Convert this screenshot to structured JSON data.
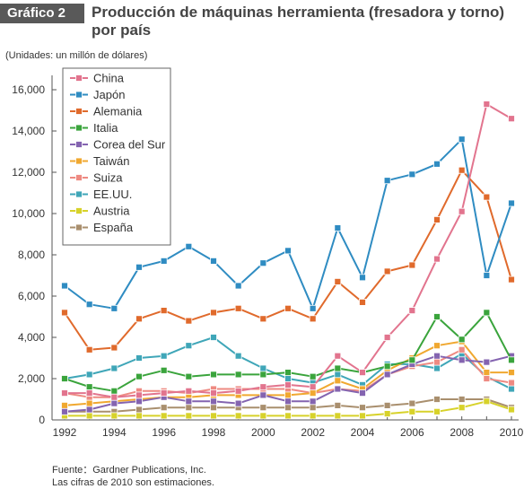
{
  "header": {
    "badge": "Gráfico 2",
    "title_line1": "Producción de máquinas herramienta (fresadora y torno)",
    "title_line2": "por país"
  },
  "units_label": "(Unidades: un millón de dólares)",
  "footer": {
    "source": "Fuente：Gardner Publications, Inc.",
    "note": "Las cifras de 2010 son estimaciones."
  },
  "chart_data": {
    "type": "line",
    "title": "Producción de máquinas herramienta (fresadora y torno) por país",
    "ylabel": "(Unidades: un millón de dólares)",
    "ylim": [
      0,
      16000
    ],
    "yticks": [
      0,
      2000,
      4000,
      6000,
      8000,
      10000,
      12000,
      14000,
      16000
    ],
    "ytick_labels": [
      "0",
      "2,000",
      "4,000",
      "6,000",
      "8,000",
      "10,000",
      "12,000",
      "14,000",
      "16,000"
    ],
    "x": [
      1992,
      1993,
      1994,
      1995,
      1996,
      1997,
      1998,
      1999,
      2000,
      2001,
      2002,
      2003,
      2004,
      2005,
      2006,
      2007,
      2008,
      2009,
      2010
    ],
    "xtick_labels": [
      "1992",
      "1994",
      "1996",
      "1998",
      "2000",
      "2002",
      "2004",
      "2006",
      "2008",
      "2010"
    ],
    "grid": false,
    "legend_position": "top-left",
    "series": [
      {
        "name": "China",
        "color": "#e2748e",
        "values": [
          1300,
          1300,
          1100,
          1200,
          1300,
          1400,
          1300,
          1400,
          1600,
          1700,
          1600,
          3100,
          2300,
          4000,
          5300,
          7800,
          10100,
          15300,
          14600
        ]
      },
      {
        "name": "Japón",
        "color": "#2f8cc2",
        "values": [
          6500,
          5600,
          5400,
          7400,
          7700,
          8400,
          7700,
          6500,
          7600,
          8200,
          5400,
          9300,
          6900,
          11600,
          11900,
          12400,
          13600,
          7000,
          10500
        ]
      },
      {
        "name": "Alemania",
        "color": "#e06a2c",
        "values": [
          5200,
          3400,
          3500,
          4900,
          5300,
          4800,
          5200,
          5400,
          4900,
          5400,
          4900,
          6700,
          5700,
          7200,
          7500,
          9700,
          12100,
          10800,
          6800
        ]
      },
      {
        "name": "Italia",
        "color": "#3aa43c",
        "values": [
          2000,
          1600,
          1400,
          2100,
          2400,
          2100,
          2200,
          2200,
          2200,
          2300,
          2100,
          2500,
          2300,
          2600,
          2900,
          5000,
          3900,
          5200,
          2900
        ]
      },
      {
        "name": "Corea del Sur",
        "color": "#8464b0",
        "values": [
          400,
          500,
          800,
          900,
          1100,
          900,
          900,
          800,
          1200,
          900,
          900,
          1500,
          1300,
          2200,
          2700,
          3100,
          2900,
          2800,
          3100
        ]
      },
      {
        "name": "Taiwán",
        "color": "#f0a830",
        "values": [
          700,
          800,
          900,
          1000,
          1100,
          1100,
          1200,
          1200,
          1200,
          1200,
          1300,
          1900,
          1500,
          2400,
          3000,
          3600,
          3800,
          2300,
          2300
        ]
      },
      {
        "name": "Suiza",
        "color": "#ee8a82",
        "values": [
          1300,
          1100,
          1100,
          1400,
          1400,
          1300,
          1500,
          1500,
          1500,
          1500,
          1300,
          1500,
          1400,
          2200,
          2600,
          2800,
          3400,
          2000,
          1800
        ]
      },
      {
        "name": "EE.UU.",
        "color": "#3fa6b8",
        "values": [
          2000,
          2200,
          2500,
          3000,
          3100,
          3600,
          4000,
          3100,
          2500,
          2000,
          1800,
          2200,
          1700,
          2700,
          2700,
          2500,
          3200,
          2100,
          1500
        ]
      },
      {
        "name": "Austria",
        "color": "#d7d22a",
        "values": [
          200,
          200,
          200,
          200,
          200,
          200,
          200,
          200,
          200,
          200,
          200,
          200,
          200,
          300,
          400,
          400,
          600,
          900,
          500
        ]
      },
      {
        "name": "España",
        "color": "#a98f6e",
        "values": [
          400,
          400,
          400,
          500,
          600,
          600,
          600,
          600,
          600,
          600,
          600,
          700,
          600,
          700,
          800,
          1000,
          1000,
          1000,
          600
        ]
      }
    ]
  }
}
